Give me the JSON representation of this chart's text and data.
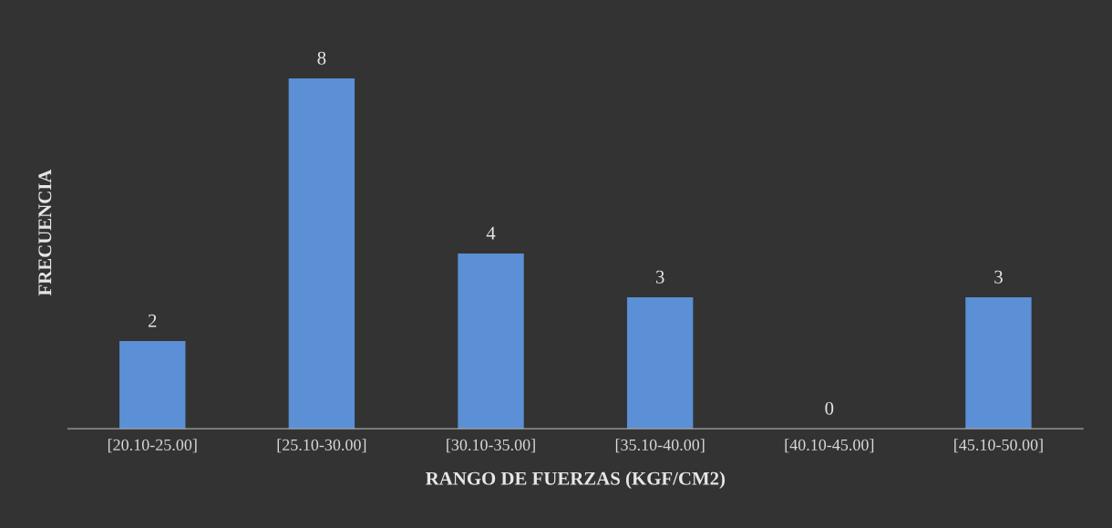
{
  "chart_data": {
    "type": "bar",
    "xlabel": "RANGO DE FUERZAS (KGF/CM2)",
    "ylabel": "FRECUENCIA",
    "categories": [
      "[20.10-25.00]",
      "[25.10-30.00]",
      "[30.10-35.00]",
      "[35.10-40.00]",
      "[40.10-45.00]",
      "[45.10-50.00]"
    ],
    "values": [
      2,
      8,
      4,
      3,
      0,
      3
    ],
    "color": "#5b8fd6",
    "data_labels": true,
    "grid": false,
    "legend": false
  }
}
